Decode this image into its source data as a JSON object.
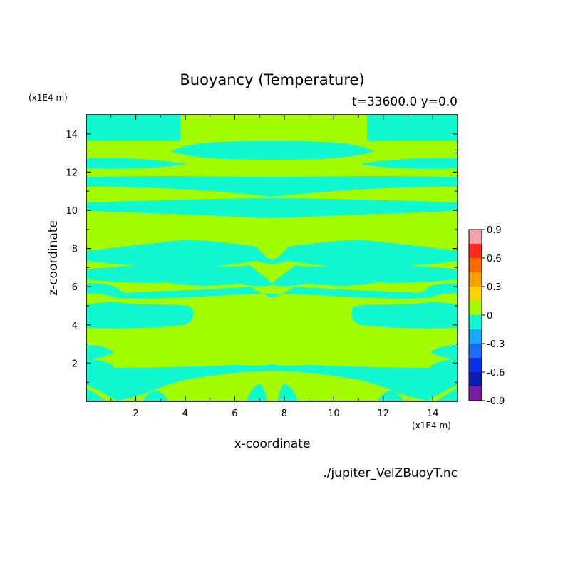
{
  "chart_data": {
    "type": "heatmap",
    "title": "Buoyancy (Temperature)",
    "subtitle": "t=33600.0 y=0.0",
    "xlabel": "x-coordinate",
    "ylabel": "z-coordinate",
    "x_unit": "(x1E4 m)",
    "y_unit": "(x1E4 m)",
    "source": "./jupiter_VelZBuoyT.nc",
    "xlim": [
      0,
      15
    ],
    "ylim": [
      0,
      15
    ],
    "x_ticks": [
      2,
      4,
      6,
      8,
      10,
      12,
      14
    ],
    "y_ticks": [
      2,
      4,
      6,
      8,
      10,
      12,
      14
    ],
    "grid": false,
    "colorbar": {
      "levels": [
        -0.9,
        -0.75,
        -0.6,
        -0.45,
        -0.3,
        -0.15,
        0,
        0.15,
        0.3,
        0.45,
        0.6,
        0.75,
        0.9
      ],
      "colors": [
        "#7d1ba6",
        "#0d1bb0",
        "#0b2fe6",
        "#1b6cf6",
        "#1aa8f8",
        "#11f7cf",
        "#a4fb00",
        "#f9d400",
        "#f9a000",
        "#f96a00",
        "#f92a18",
        "#f4a4a4"
      ],
      "tick_values": [
        0.9,
        0.6,
        0.3,
        0,
        -0.3,
        -0.6,
        -0.9
      ],
      "tick_labels": [
        "0.9",
        "0.6",
        "0.3",
        "0",
        "-0.3",
        "-0.6",
        "-0.9"
      ]
    },
    "field": {
      "background_value": 0.05,
      "background_color": "#a4fb00",
      "negative_color": "#11f7cf",
      "negative_bands_z_ranges": [
        [
          13.6,
          15.0
        ],
        [
          13.0,
          13.4
        ],
        [
          12.0,
          12.4
        ],
        [
          11.0,
          11.5
        ],
        [
          10.0,
          10.4
        ],
        [
          7.3,
          7.9
        ],
        [
          6.5,
          7.1
        ],
        [
          5.7,
          6.1
        ],
        [
          4.0,
          5.0
        ],
        [
          1.8,
          3.0
        ],
        [
          0.2,
          1.2
        ]
      ]
    }
  }
}
